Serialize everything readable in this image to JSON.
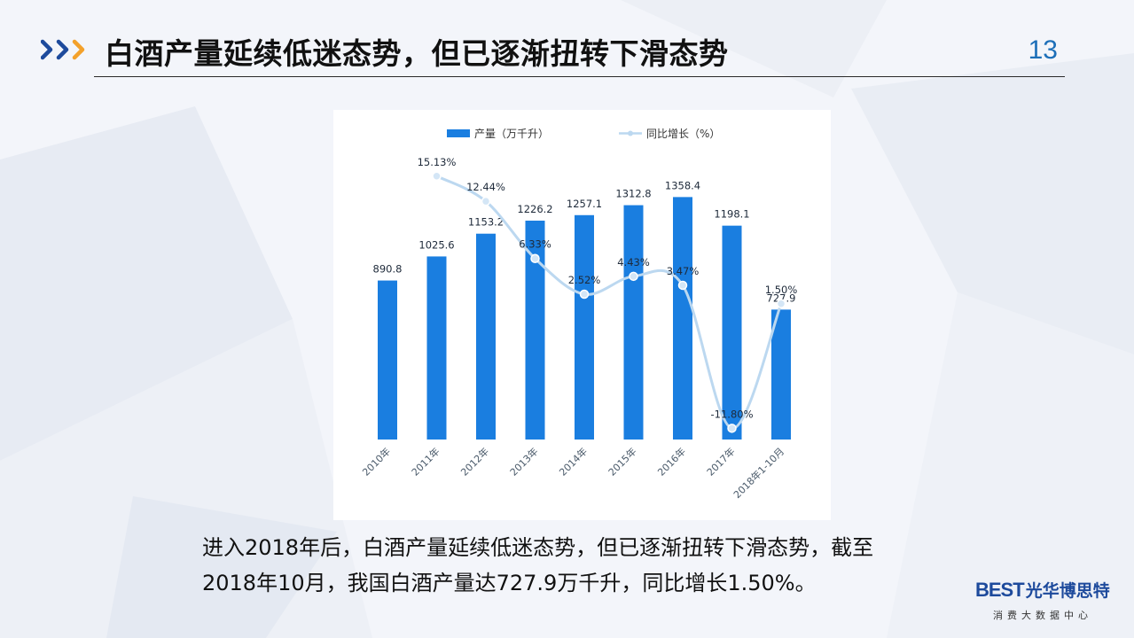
{
  "header": {
    "title": "白酒产量延续低迷态势，但已逐渐扭转下滑态势",
    "page_number": "13",
    "chevron_icon": "chevron-right-triple-icon",
    "chevron_colors": [
      "#1d4a9c",
      "#f3a12b"
    ]
  },
  "chart_data": {
    "type": "bar",
    "categories": [
      "2010年",
      "2011年",
      "2012年",
      "2013年",
      "2014年",
      "2015年",
      "2016年",
      "2017年",
      "2018年1-10月"
    ],
    "series": [
      {
        "name": "产量（万千升）",
        "type": "bar",
        "color": "#1a7ee0",
        "values": [
          890.8,
          1025.6,
          1153.2,
          1226.2,
          1257.1,
          1312.8,
          1358.4,
          1198.1,
          727.9
        ],
        "labels": [
          "890.8",
          "1025.6",
          "1153.2",
          "1226.2",
          "1257.1",
          "1312.8",
          "1358.4",
          "1198.1",
          "727.9"
        ]
      },
      {
        "name": "同比增长（%）",
        "type": "line",
        "smooth": true,
        "color": "#bcd8f0",
        "values": [
          null,
          15.13,
          12.44,
          6.33,
          2.52,
          4.43,
          3.47,
          -11.8,
          1.5
        ],
        "labels": [
          "",
          "15.13%",
          "12.44%",
          "6.33%",
          "2.52%",
          "4.43%",
          "3.47%",
          "-11.80%",
          "1.50%"
        ]
      }
    ],
    "legend": {
      "position": "top-center"
    },
    "grid": false,
    "ylim_bar": [
      0,
      1400
    ],
    "ylim_line": [
      -13,
      17
    ]
  },
  "caption": {
    "line1": "进入2018年后，白酒产量延续低迷态势，但已逐渐扭转下滑态势，截至",
    "line2": "2018年10月，我国白酒产量达727.9万千升，同比增长1.50%。"
  },
  "logo": {
    "best": "BEST",
    "name": "光华博思特",
    "subtitle": "消费大数据中心",
    "color": "#1d4a9c"
  }
}
